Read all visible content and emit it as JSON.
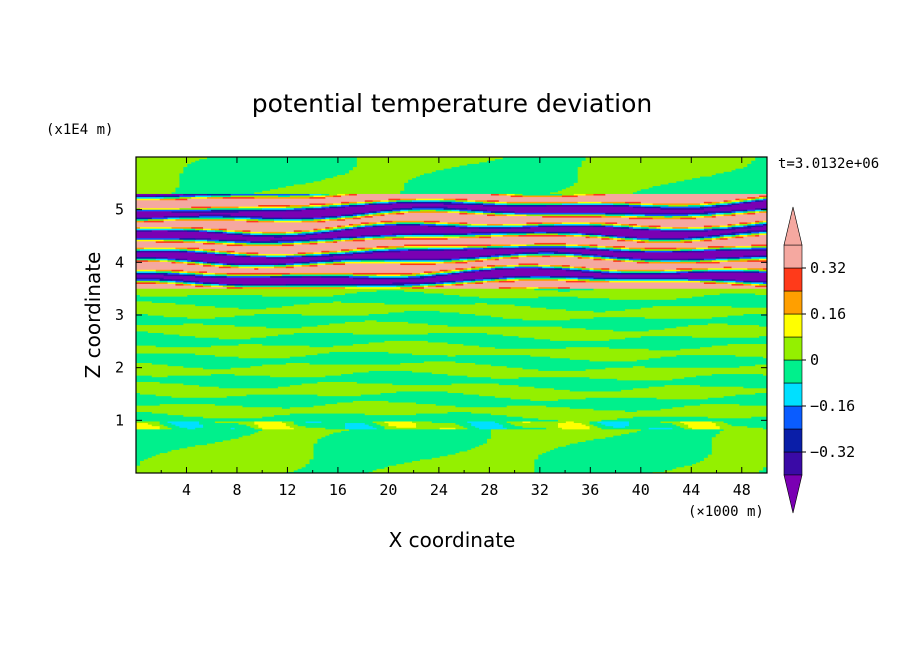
{
  "chart_data": {
    "type": "heatmap",
    "title": "potential temperature deviation",
    "xlabel": "X coordinate",
    "ylabel": "Z coordinate",
    "x_unit": "(×1000 m)",
    "y_unit": "(x1E4 m)",
    "time_label": "t=3.0132e+06",
    "xlim": [
      0,
      50
    ],
    "ylim": [
      0,
      6
    ],
    "x_ticks": [
      4,
      8,
      12,
      16,
      20,
      24,
      28,
      32,
      36,
      40,
      44,
      48
    ],
    "y_ticks": [
      1,
      2,
      3,
      4,
      5
    ],
    "colorbar": {
      "levels": [
        -0.4,
        -0.32,
        -0.24,
        -0.16,
        -0.08,
        0,
        0.08,
        0.16,
        0.24,
        0.32,
        0.4
      ],
      "tick_values": [
        0.32,
        0.16,
        0,
        -0.16,
        -0.32
      ],
      "tick_labels": [
        "0.32",
        "0.16",
        "0",
        "−0.16",
        "−0.32"
      ],
      "colors": [
        "#7a00b3",
        "#3a0aa6",
        "#0a1ea8",
        "#0a5cff",
        "#00e0ff",
        "#00f08c",
        "#94f000",
        "#ffff00",
        "#ff9f00",
        "#ff3a1a",
        "#f5a8a0"
      ],
      "extend": "both"
    },
    "bands": [
      {
        "z_range": [
          0,
          0.3
        ],
        "pattern": "mixed-green",
        "value": 0.02
      },
      {
        "z_range": [
          0.85,
          1.0
        ],
        "pattern": "weak-alternating",
        "value": 0.1
      },
      {
        "z_range": [
          1.0,
          3.5
        ],
        "pattern": "layered-green",
        "value": 0.04
      },
      {
        "z_range": [
          3.5,
          5.3
        ],
        "pattern": "strong-alternating",
        "value": 0.45
      },
      {
        "z_range": [
          5.3,
          6.0
        ],
        "pattern": "mixed-green",
        "value": 0.02
      }
    ]
  }
}
